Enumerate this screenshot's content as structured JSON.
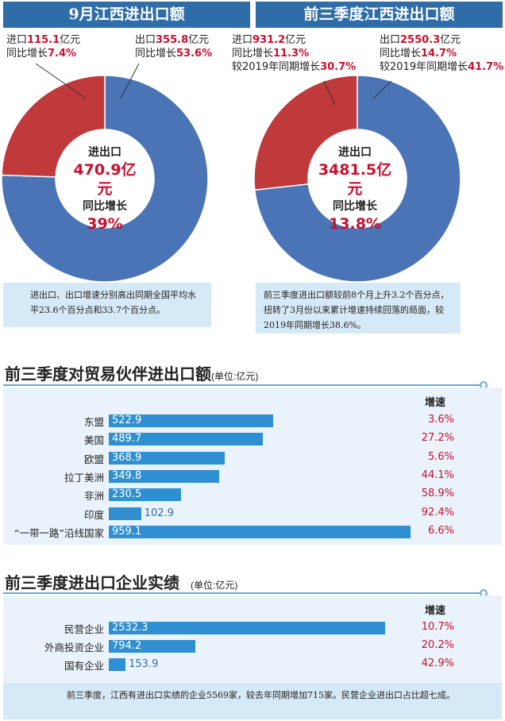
{
  "chart_data": [
    {
      "type": "pie",
      "title": "9月江西进出口额",
      "slices": [
        {
          "name": "进口",
          "value": 115.1,
          "growth": "7.4%",
          "color": "#c0393b"
        },
        {
          "name": "出口",
          "value": 355.8,
          "growth": "53.6%",
          "color": "#4a74b5"
        }
      ],
      "center": {
        "line1": "进出口",
        "value": "470.9亿元",
        "line3": "同比增长",
        "line4": "39%"
      },
      "labels": {
        "import_label": "进口",
        "import_value": "115.1",
        "unit": "亿元",
        "import_growth_label": "同比增长",
        "import_growth": "7.4%",
        "export_label": "出口",
        "export_value": "355.8",
        "export_growth_label": "同比增长",
        "export_growth": "53.6%"
      },
      "note": "进出口、出口增速分别高出同期全国平均水平23.6个百分点和33.7个百分点。"
    },
    {
      "type": "pie",
      "title": "前三季度江西进出口额",
      "slices": [
        {
          "name": "进口",
          "value": 931.2,
          "growth": "11.3%",
          "growth_vs_2019": "30.7%",
          "color": "#c0393b"
        },
        {
          "name": "出口",
          "value": 2550.3,
          "growth": "14.7%",
          "growth_vs_2019": "41.7%",
          "color": "#4a74b5"
        }
      ],
      "center": {
        "line1": "进出口",
        "value": "3481.5亿元",
        "line3": "同比增长",
        "line4": "13.8%"
      },
      "labels": {
        "import_label": "进口",
        "import_value": "931.2",
        "unit": "亿元",
        "import_growth_label": "同比增长",
        "import_growth": "11.3%",
        "import_2019_label": "较2019年同期增长",
        "import_2019": "30.7%",
        "export_label": "出口",
        "export_value": "2550.3",
        "export_growth_label": "同比增长",
        "export_growth": "14.7%",
        "export_2019_label": "较2019年同期增长",
        "export_2019": "41.7%"
      },
      "note": "前三季度进出口额较前8个月上升3.2个百分点，扭转了3月份以来累计增速持续回落的局面，较2019年同期增长38.6%。"
    },
    {
      "type": "bar",
      "orientation": "horizontal",
      "title": "前三季度对贸易伙伴进出口额",
      "unit": "(单位:亿元)",
      "speed_header": "增速",
      "categories": [
        "东盟",
        "美国",
        "欧盟",
        "拉丁美洲",
        "非洲",
        "印度",
        "“一带一路”沿线国家"
      ],
      "values": [
        522.9,
        489.7,
        368.9,
        349.8,
        230.5,
        102.9,
        959.1
      ],
      "growth": [
        "3.6%",
        "27.2%",
        "5.6%",
        "44.1%",
        "58.9%",
        "92.4%",
        "6.6%"
      ],
      "color": "#2f8fd0"
    },
    {
      "type": "bar",
      "orientation": "horizontal",
      "title": "前三季度进出口企业实绩",
      "unit": "(单位:亿元)",
      "speed_header": "增速",
      "categories": [
        "民营企业",
        "外商投资企业",
        "国有企业"
      ],
      "values": [
        2532.3,
        794.2,
        153.9
      ],
      "growth": [
        "10.7%",
        "20.2%",
        "42.9%"
      ],
      "color": "#2f8fd0",
      "note": "前三季度，江西有进出口实绩的企业5569家，较去年同期增加715家。民营企业进出口占比超七成。"
    }
  ]
}
